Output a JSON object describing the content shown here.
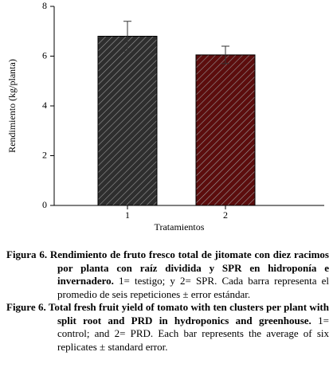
{
  "chart_data": {
    "type": "bar",
    "categories": [
      "1",
      "2"
    ],
    "values": [
      6.8,
      6.05
    ],
    "errors": [
      0.6,
      0.35
    ],
    "colors": [
      "#2e2e2e",
      "#5c0d0d"
    ],
    "hatch": true,
    "ylim": [
      0,
      8
    ],
    "yticks": [
      0,
      2,
      4,
      6,
      8
    ],
    "grid": false,
    "xlabel": "Tratamientos",
    "ylabel": "Rendimiento (kg/planta)"
  },
  "caption": {
    "es_bold": "Figura 6. Rendimiento de fruto fresco total de jitomate con diez racimos por planta con raíz dividida y SPR en hidroponía e invernadero.",
    "es_text": "1= testigo; y 2= SPR. Cada barra representa el promedio de seis repeticiones ± error estándar.",
    "en_bold": "Figure 6. Total fresh fruit yield of tomato with ten clusters per plant with split root and PRD in hydroponics and greenhouse.",
    "en_text": "1= control; and 2= PRD. Each bar represents the average of six replicates ± standard error."
  }
}
